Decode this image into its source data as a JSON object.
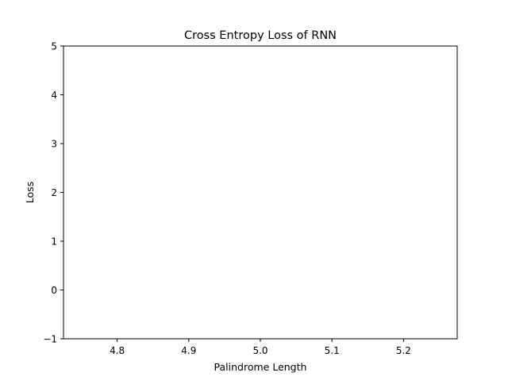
{
  "chart_data": {
    "type": "line",
    "title": "Cross Entropy Loss of RNN",
    "xlabel": "Palindrome Length",
    "ylabel": "Loss",
    "xlim": [
      4.725,
      5.275
    ],
    "ylim": [
      -1,
      5
    ],
    "xticks": [
      4.8,
      4.9,
      5.0,
      5.1,
      5.2
    ],
    "xtick_labels": [
      "4.8",
      "4.9",
      "5.0",
      "5.1",
      "5.2"
    ],
    "yticks": [
      -1,
      0,
      1,
      2,
      3,
      4,
      5
    ],
    "ytick_labels": [
      "−1",
      "0",
      "1",
      "2",
      "3",
      "4",
      "5"
    ],
    "series": [],
    "grid": false,
    "legend": "none",
    "colors": {
      "axis": "#000000",
      "background": "#ffffff"
    }
  }
}
